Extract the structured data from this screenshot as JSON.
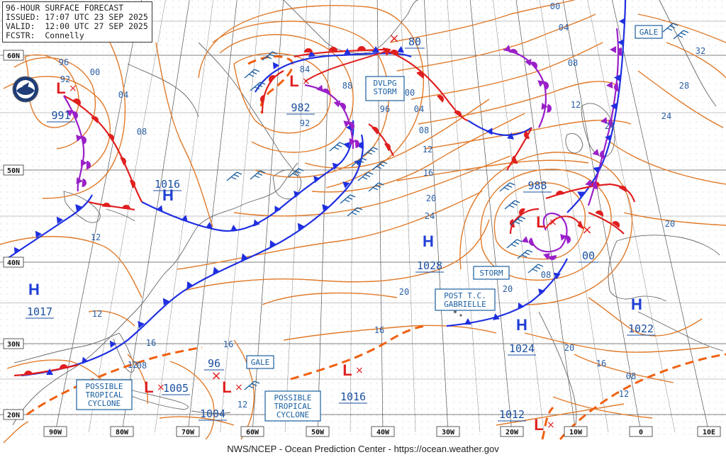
{
  "header": {
    "line1": "96-HOUR SURFACE FORECAST",
    "line2": "ISSUED: 17:07 UTC 23 SEP 2025",
    "line3": "VALID:  12:00 UTC 27 SEP 2025",
    "line4": "FCSTR:  Connelly"
  },
  "footer": "NWS/NCEP - Ocean Prediction Center - https://ocean.weather.gov",
  "logo": "noaa-logo",
  "colors": {
    "high": "#1f3fd6",
    "low": "#e01f1f",
    "isobar": "#e07a2a",
    "cold_front": "#1f2fe0",
    "warm_front": "#e01f1f",
    "occluded": "#9a20c8",
    "trough": "#f06010",
    "label": "#1a5fa0"
  },
  "axes": {
    "lon_labels": [
      "90W",
      "80W",
      "70W",
      "60W",
      "50W",
      "40W",
      "30W",
      "20W",
      "10W",
      "0",
      "10E"
    ],
    "lat_labels": [
      "60N",
      "50N",
      "40N",
      "30N",
      "20N"
    ]
  },
  "pressure_centers": [
    {
      "type": "L",
      "value": "991"
    },
    {
      "type": "H",
      "value": "1016"
    },
    {
      "type": "L",
      "value": "982"
    },
    {
      "type": "H",
      "value": "1017"
    },
    {
      "type": "H",
      "value": "1028"
    },
    {
      "type": "L",
      "value": "988"
    },
    {
      "type": "H",
      "value": "1024"
    },
    {
      "type": "H",
      "value": "1022"
    },
    {
      "type": "L",
      "value": "1005"
    },
    {
      "type": "L",
      "value": "1004"
    },
    {
      "type": "L",
      "value": "1016"
    },
    {
      "type": "L",
      "value": "1012"
    }
  ],
  "future_positions": [
    {
      "value": "80"
    },
    {
      "value": "00"
    },
    {
      "value": "96"
    }
  ],
  "warning_labels": [
    "DVLPG\nSTORM",
    "STORM",
    "POST T.C.\nGABRIELLE",
    "GALE",
    "GALE",
    "POSSIBLE\nTROPICAL\nCYCLONE",
    "POSSIBLE\nTROPICAL\nCYCLONE"
  ],
  "isobar_values": [
    "96",
    "92",
    "00",
    "04",
    "08",
    "12",
    "84",
    "88",
    "92",
    "96",
    "00",
    "04",
    "08",
    "12",
    "16",
    "20",
    "24",
    "00",
    "04",
    "08",
    "12",
    "32",
    "28",
    "24",
    "20",
    "20",
    "24",
    "12",
    "16",
    "20",
    "16",
    "12",
    "12",
    "08",
    "08",
    "08",
    "16",
    "20",
    "12",
    "16"
  ]
}
